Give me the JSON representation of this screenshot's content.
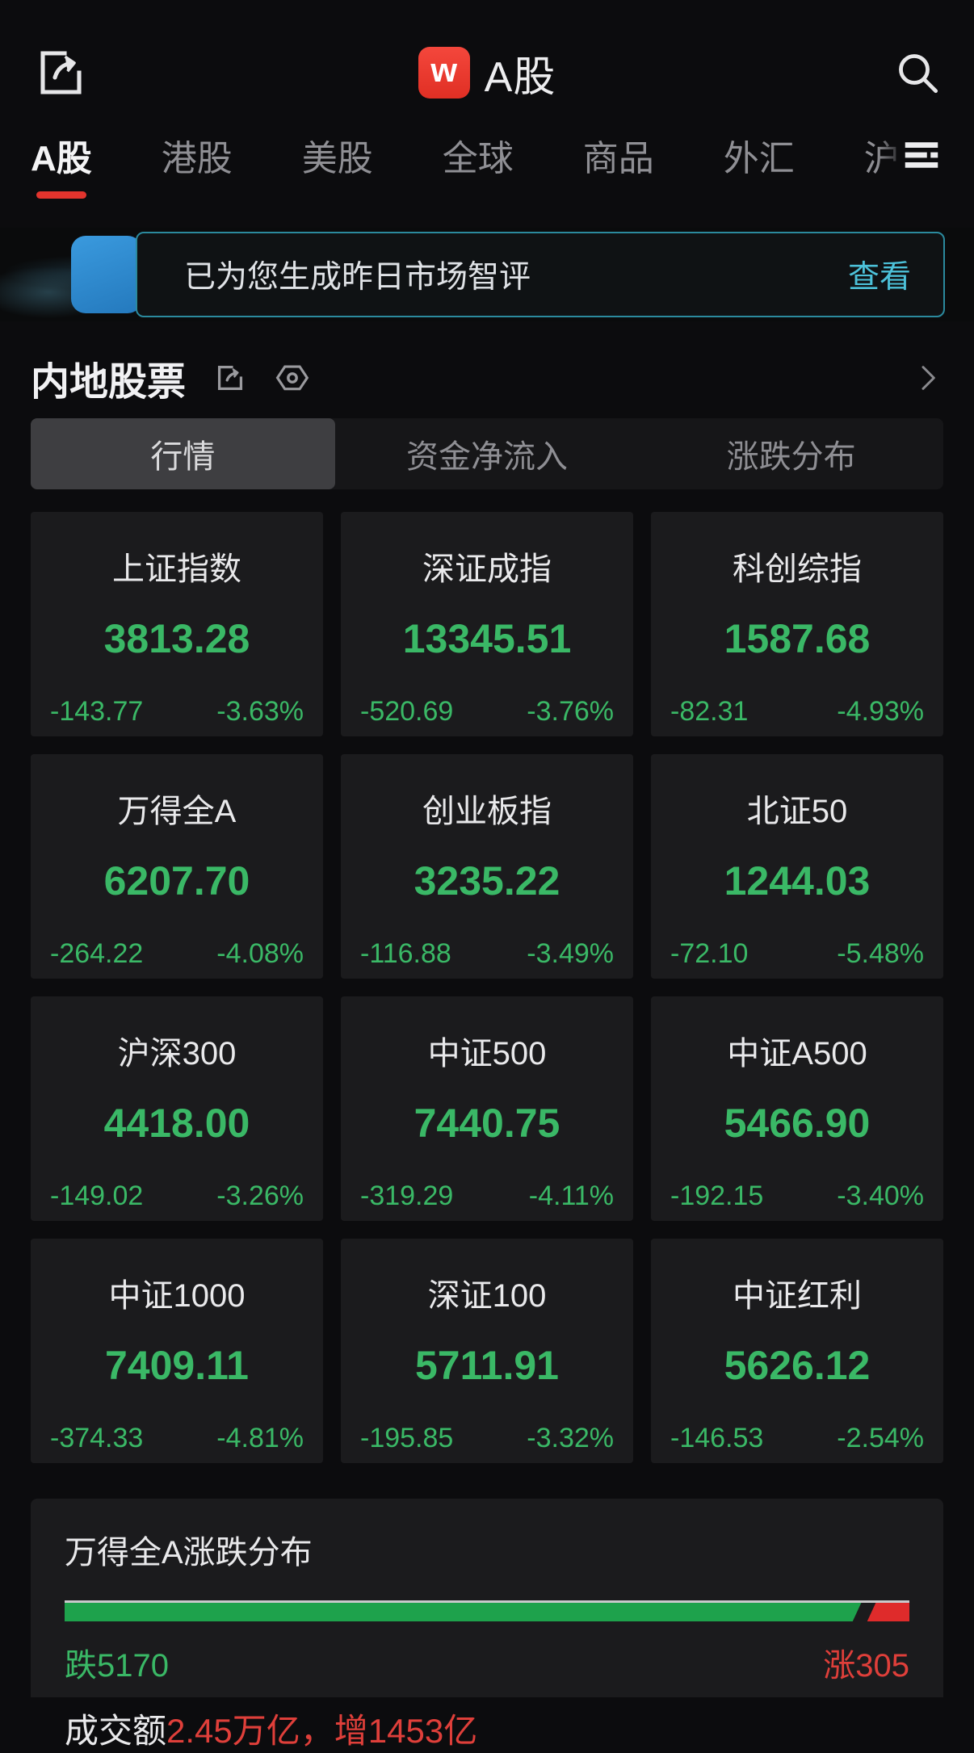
{
  "header": {
    "logo_letter": "w",
    "title": "A股"
  },
  "nav_tabs": [
    {
      "label": "A股",
      "active": true
    },
    {
      "label": "港股",
      "active": false
    },
    {
      "label": "美股",
      "active": false
    },
    {
      "label": "全球",
      "active": false
    },
    {
      "label": "商品",
      "active": false
    },
    {
      "label": "外汇",
      "active": false
    },
    {
      "label": "沪",
      "active": false
    }
  ],
  "banner": {
    "text": "已为您生成昨日市场智评",
    "action": "查看"
  },
  "section": {
    "title": "内地股票"
  },
  "sub_tabs": [
    {
      "label": "行情",
      "active": true
    },
    {
      "label": "资金净流入",
      "active": false
    },
    {
      "label": "涨跌分布",
      "active": false
    }
  ],
  "indices": [
    {
      "name": "上证指数",
      "value": "3813.28",
      "change": "-143.77",
      "pct": "-3.63%"
    },
    {
      "name": "深证成指",
      "value": "13345.51",
      "change": "-520.69",
      "pct": "-3.76%"
    },
    {
      "name": "科创综指",
      "value": "1587.68",
      "change": "-82.31",
      "pct": "-4.93%"
    },
    {
      "name": "万得全A",
      "value": "6207.70",
      "change": "-264.22",
      "pct": "-4.08%"
    },
    {
      "name": "创业板指",
      "value": "3235.22",
      "change": "-116.88",
      "pct": "-3.49%"
    },
    {
      "name": "北证50",
      "value": "1244.03",
      "change": "-72.10",
      "pct": "-5.48%"
    },
    {
      "name": "沪深300",
      "value": "4418.00",
      "change": "-149.02",
      "pct": "-3.26%"
    },
    {
      "name": "中证500",
      "value": "7440.75",
      "change": "-319.29",
      "pct": "-4.11%"
    },
    {
      "name": "中证A500",
      "value": "5466.90",
      "change": "-192.15",
      "pct": "-3.40%"
    },
    {
      "name": "中证1000",
      "value": "7409.11",
      "change": "-374.33",
      "pct": "-4.81%"
    },
    {
      "name": "深证100",
      "value": "5711.91",
      "change": "-195.85",
      "pct": "-3.32%"
    },
    {
      "name": "中证红利",
      "value": "5626.12",
      "change": "-146.53",
      "pct": "-2.54%"
    }
  ],
  "distribution": {
    "title": "万得全A涨跌分布",
    "down_label": "跌5170",
    "up_label": "涨305",
    "down_count": 5170,
    "up_count": 305,
    "turnover_prefix": "成交额",
    "turnover_value": "2.45万亿，增1453亿"
  },
  "colors": {
    "down_green": "#3ab866",
    "up_red": "#df3f3a",
    "accent_red": "#e2342d",
    "link_teal": "#4cc1d9",
    "card_bg": "#1b1b1d"
  }
}
